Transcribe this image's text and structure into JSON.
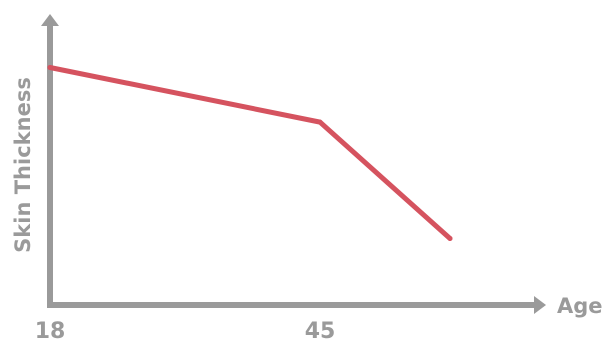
{
  "chart_data": {
    "type": "line",
    "title": "",
    "xlabel": "Age",
    "ylabel": "Skin Thickness",
    "x_ticks": [
      {
        "value": 18,
        "label": "18"
      },
      {
        "value": 45,
        "label": "45"
      }
    ],
    "series": [
      {
        "name": "",
        "points": [
          {
            "x": 18,
            "y": 10
          },
          {
            "x": 45,
            "y": 7.7
          },
          {
            "x": 58,
            "y": 2.8
          }
        ]
      }
    ],
    "xlim": [
      18,
      66
    ],
    "ylim": [
      0,
      12
    ],
    "y_ticks_shown": false,
    "grid": false,
    "legend": "none",
    "colors": {
      "line": "#d5535f",
      "axis": "#9a9a9a",
      "text": "#9a9a9a"
    }
  }
}
